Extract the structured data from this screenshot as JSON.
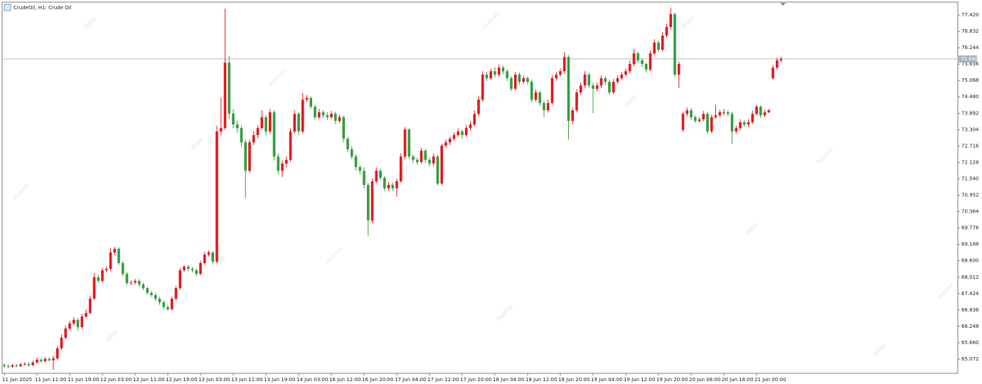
{
  "chart_data": {
    "type": "candlestick",
    "title": "CrudeOil, H1:  Crude Oil",
    "watermarks": [
      "百利好",
      "PLOTIO"
    ],
    "up_color": "#e3161c",
    "down_color": "#2f9e3c",
    "grid": false,
    "ylim": [
      64.563,
      77.879
    ],
    "yticks": [
      {
        "value": 77.42,
        "label": "77.420"
      },
      76.832,
      76.244,
      75.656,
      75.068,
      {
        "value": 74.48,
        "label": "74.480"
      },
      73.892,
      73.304,
      72.716,
      72.128,
      {
        "value": 71.54,
        "label": "71.540"
      },
      70.952,
      70.364,
      69.776,
      69.188,
      {
        "value": 68.6,
        "label": "68.600"
      },
      68.012,
      67.424,
      66.836,
      66.248,
      {
        "value": 65.66,
        "label": "65.660"
      },
      65.072
    ],
    "current_price": {
      "value": 75.84,
      "label": "75.840"
    },
    "categories": [
      "11 Jun 2025",
      null,
      null,
      null,
      null,
      null,
      null,
      null,
      "11 Jun 11:00",
      null,
      null,
      null,
      null,
      null,
      null,
      null,
      "11 Jun 19:00",
      null,
      null,
      null,
      null,
      null,
      null,
      null,
      "12 Jun 03:00",
      null,
      null,
      null,
      null,
      null,
      null,
      null,
      "12 Jun 11:00",
      null,
      null,
      null,
      null,
      null,
      null,
      null,
      "12 Jun 19:00",
      null,
      null,
      null,
      null,
      null,
      null,
      null,
      "13 Jun 03:00",
      null,
      null,
      null,
      null,
      null,
      null,
      null,
      "13 Jun 11:00",
      null,
      null,
      null,
      null,
      null,
      null,
      null,
      "13 Jun 19:00",
      null,
      null,
      null,
      null,
      null,
      null,
      null,
      "14 Jun 03:00",
      null,
      null,
      null,
      null,
      null,
      null,
      null,
      "16 Jun 12:00",
      null,
      null,
      null,
      null,
      null,
      null,
      null,
      "16 Jun 20:00",
      null,
      null,
      null,
      null,
      null,
      null,
      null,
      "17 Jun 04:00",
      null,
      null,
      null,
      null,
      null,
      null,
      null,
      "17 Jun 12:00",
      null,
      null,
      null,
      null,
      null,
      null,
      null,
      "17 Jun 20:00",
      null,
      null,
      null,
      null,
      null,
      null,
      null,
      "18 Jun 04:00",
      null,
      null,
      null,
      null,
      null,
      null,
      null,
      "18 Jun 12:00",
      null,
      null,
      null,
      null,
      null,
      null,
      null,
      "18 Jun 20:00",
      null,
      null,
      null,
      null,
      null,
      null,
      null,
      "19 Jun 04:00",
      null,
      null,
      null,
      null,
      null,
      null,
      null,
      "19 Jun 12:00",
      null,
      null,
      null,
      null,
      null,
      null,
      null,
      "19 Jun 20:00",
      null,
      null,
      null,
      null,
      null,
      null,
      null,
      "20 Jun 08:00",
      null,
      null,
      null,
      null,
      null,
      null,
      null,
      "20 Jun 16:00",
      null,
      null,
      null,
      null,
      null,
      null,
      null,
      "21 Jun 00:00",
      null,
      null,
      null,
      null,
      null,
      null
    ],
    "open": [
      64.86,
      64.82,
      64.8,
      64.85,
      64.82,
      64.88,
      64.9,
      64.86,
      64.95,
      65.05,
      65.0,
      65.08,
      65.03,
      65.1,
      65.46,
      65.84,
      66.17,
      66.35,
      66.48,
      66.22,
      66.6,
      66.73,
      67.24,
      68.01,
      67.88,
      68.26,
      68.31,
      68.9,
      69.03,
      68.52,
      68.13,
      67.8,
      67.82,
      67.88,
      67.75,
      67.62,
      67.45,
      67.37,
      67.24,
      67.11,
      66.94,
      66.86,
      67.24,
      67.62,
      68.26,
      68.39,
      68.31,
      68.26,
      68.13,
      68.52,
      68.82,
      68.9,
      68.57,
      73.24,
      73.36,
      75.71,
      73.88,
      73.49,
      73.36,
      72.85,
      71.83,
      72.85,
      73.11,
      73.36,
      73.75,
      73.24,
      73.93,
      72.34,
      71.83,
      72.09,
      72.22,
      73.24,
      73.87,
      73.24,
      74.38,
      74.44,
      74.13,
      73.75,
      73.93,
      73.82,
      73.75,
      73.87,
      73.62,
      73.75,
      72.98,
      72.6,
      72.34,
      71.96,
      71.83,
      71.32,
      70.05,
      71.45,
      71.83,
      71.58,
      71.2,
      71.32,
      71.2,
      71.45,
      72.34,
      73.31,
      72.34,
      72.22,
      72.14,
      72.55,
      72.22,
      72.09,
      72.34,
      71.37,
      72.73,
      72.85,
      72.98,
      73.11,
      73.24,
      73.11,
      73.36,
      73.49,
      73.87,
      74.38,
      75.28,
      75.15,
      75.4,
      75.28,
      75.53,
      75.4,
      75.15,
      74.77,
      75.28,
      75.02,
      75.15,
      75.02,
      74.38,
      74.64,
      74.26,
      74.0,
      74.26,
      75.15,
      75.28,
      75.4,
      75.91,
      73.62,
      74.0,
      74.64,
      74.89,
      75.28,
      74.89,
      74.77,
      74.89,
      75.15,
      75.02,
      74.64,
      75.02,
      75.15,
      75.28,
      75.4,
      75.66,
      76.04,
      75.79,
      75.66,
      75.46,
      76.04,
      76.43,
      76.17,
      76.68,
      76.99,
      77.45,
      75.28,
      73.3,
      73.87,
      74.0,
      73.75,
      73.62,
      73.67,
      73.87,
      73.24,
      73.75,
      73.82,
      73.93,
      73.93,
      73.87,
      73.24,
      73.36,
      73.57,
      73.49,
      73.57,
      73.87,
      74.13,
      73.82,
      73.93,
      75.15,
      75.53,
      75.79
    ],
    "high": [
      64.92,
      64.88,
      64.9,
      64.9,
      64.94,
      64.96,
      64.95,
      65.02,
      65.12,
      65.1,
      65.15,
      65.14,
      65.2,
      65.55,
      65.95,
      66.28,
      66.45,
      66.58,
      66.55,
      66.7,
      66.85,
      67.35,
      68.15,
      68.1,
      68.35,
      68.4,
      69.05,
      69.1,
      69.08,
      68.6,
      68.2,
      67.9,
      67.95,
      67.95,
      67.82,
      67.68,
      67.52,
      67.45,
      67.3,
      67.18,
      67.02,
      67.32,
      67.7,
      68.35,
      68.45,
      68.45,
      68.38,
      68.32,
      68.6,
      68.92,
      68.98,
      68.95,
      73.45,
      74.45,
      77.65,
      75.95,
      74.05,
      73.62,
      73.45,
      72.95,
      72.95,
      73.25,
      73.45,
      74.0,
      73.82,
      74.05,
      74.0,
      72.45,
      72.2,
      72.35,
      73.35,
      74.0,
      73.95,
      74.62,
      74.55,
      74.5,
      74.2,
      74.05,
      74.0,
      73.92,
      73.98,
      73.95,
      73.85,
      73.82,
      73.05,
      72.7,
      72.42,
      72.05,
      71.95,
      71.4,
      71.55,
      71.95,
      71.9,
      71.65,
      71.42,
      71.4,
      71.55,
      72.45,
      73.4,
      73.35,
      72.42,
      72.3,
      72.65,
      72.62,
      72.3,
      72.45,
      72.4,
      72.8,
      72.95,
      73.05,
      73.2,
      73.35,
      73.3,
      73.48,
      73.6,
      74.0,
      74.5,
      75.4,
      75.38,
      75.5,
      75.55,
      75.65,
      75.6,
      75.48,
      75.22,
      75.38,
      75.35,
      75.25,
      75.22,
      75.1,
      74.75,
      74.7,
      74.35,
      74.38,
      75.25,
      75.38,
      75.5,
      76.1,
      75.98,
      74.1,
      74.75,
      75.0,
      75.4,
      75.35,
      74.98,
      75.0,
      75.25,
      75.22,
      75.1,
      75.12,
      75.25,
      75.38,
      75.5,
      75.78,
      76.2,
      76.1,
      75.88,
      75.72,
      76.15,
      76.55,
      76.5,
      76.8,
      77.1,
      77.68,
      77.5,
      75.75,
      73.95,
      74.1,
      74.08,
      73.82,
      73.75,
      73.98,
      73.95,
      73.85,
      74.2,
      74.02,
      74.05,
      74.0,
      73.95,
      73.45,
      73.68,
      73.65,
      73.68,
      73.98,
      74.2,
      74.18,
      74.02,
      74.05,
      75.62,
      75.88,
      75.92
    ],
    "low": [
      64.76,
      64.74,
      64.76,
      64.78,
      64.78,
      64.84,
      64.8,
      64.82,
      64.92,
      64.95,
      64.96,
      64.98,
      64.69,
      65.05,
      65.4,
      65.78,
      66.1,
      66.28,
      66.1,
      66.15,
      66.55,
      66.68,
      67.2,
      67.8,
      67.82,
      68.18,
      68.25,
      68.8,
      68.45,
      68.05,
      67.72,
      67.72,
      67.75,
      67.68,
      67.55,
      67.38,
      67.3,
      67.15,
      67.02,
      66.85,
      66.8,
      66.82,
      67.18,
      67.55,
      68.2,
      68.22,
      68.18,
      68.05,
      68.08,
      68.45,
      68.75,
      68.5,
      68.5,
      73.1,
      73.3,
      73.7,
      73.35,
      73.2,
      72.7,
      70.85,
      71.75,
      72.75,
      73.0,
      73.3,
      73.1,
      73.15,
      72.2,
      71.7,
      71.6,
      71.95,
      72.15,
      73.15,
      73.1,
      73.15,
      74.3,
      74.05,
      73.65,
      73.68,
      73.72,
      73.65,
      73.68,
      73.5,
      73.55,
      72.85,
      72.5,
      72.25,
      71.85,
      71.7,
      71.2,
      69.5,
      69.95,
      71.38,
      71.48,
      71.1,
      71.12,
      71.1,
      70.9,
      71.4,
      72.25,
      72.25,
      72.1,
      72.05,
      72.08,
      72.12,
      71.98,
      72.0,
      71.3,
      71.3,
      72.65,
      72.75,
      72.9,
      73.05,
      72.98,
      73.05,
      73.28,
      73.42,
      73.8,
      74.3,
      75.05,
      75.08,
      75.18,
      75.2,
      75.3,
      75.05,
      74.68,
      74.7,
      74.92,
      74.95,
      74.92,
      74.28,
      74.3,
      74.15,
      73.75,
      73.92,
      74.2,
      75.05,
      75.2,
      75.3,
      72.95,
      73.5,
      73.92,
      74.55,
      74.8,
      74.8,
      73.9,
      74.68,
      74.8,
      74.9,
      74.55,
      74.58,
      74.95,
      75.08,
      75.2,
      75.32,
      75.58,
      75.7,
      75.55,
      75.35,
      75.4,
      75.98,
      76.08,
      76.1,
      76.6,
      76.9,
      75.2,
      74.8,
      73.22,
      73.78,
      73.65,
      73.55,
      73.55,
      73.6,
      73.15,
      73.18,
      73.7,
      73.75,
      73.82,
      73.78,
      72.8,
      73.15,
      73.28,
      73.4,
      73.4,
      73.5,
      73.8,
      73.72,
      73.75,
      73.9,
      75.08,
      75.45,
      75.72
    ],
    "close": [
      64.82,
      64.8,
      64.85,
      64.82,
      64.88,
      64.9,
      64.86,
      64.95,
      65.05,
      65.0,
      65.08,
      65.03,
      65.1,
      65.46,
      65.84,
      66.17,
      66.35,
      66.48,
      66.22,
      66.6,
      66.73,
      67.24,
      68.01,
      67.88,
      68.26,
      68.31,
      68.9,
      69.03,
      68.52,
      68.13,
      67.8,
      67.82,
      67.88,
      67.75,
      67.62,
      67.45,
      67.37,
      67.24,
      67.11,
      66.94,
      66.86,
      67.24,
      67.62,
      68.26,
      68.39,
      68.31,
      68.26,
      68.13,
      68.52,
      68.82,
      68.9,
      68.57,
      73.24,
      73.36,
      75.71,
      73.88,
      73.49,
      73.36,
      72.85,
      71.83,
      72.85,
      73.11,
      73.36,
      73.75,
      73.24,
      73.93,
      72.34,
      71.83,
      72.09,
      72.22,
      73.24,
      73.87,
      73.24,
      74.38,
      74.44,
      74.13,
      73.75,
      73.93,
      73.82,
      73.75,
      73.87,
      73.62,
      73.75,
      72.98,
      72.6,
      72.34,
      71.96,
      71.83,
      71.32,
      70.05,
      71.45,
      71.83,
      71.58,
      71.2,
      71.32,
      71.2,
      71.45,
      72.34,
      73.31,
      72.34,
      72.22,
      72.14,
      72.55,
      72.22,
      72.09,
      72.34,
      71.37,
      72.73,
      72.85,
      72.98,
      73.11,
      73.24,
      73.11,
      73.36,
      73.49,
      73.87,
      74.38,
      75.28,
      75.15,
      75.4,
      75.28,
      75.53,
      75.4,
      75.15,
      74.77,
      75.28,
      75.02,
      75.15,
      75.02,
      74.38,
      74.64,
      74.26,
      74.0,
      74.26,
      75.15,
      75.28,
      75.4,
      75.91,
      73.62,
      74.0,
      74.64,
      74.89,
      75.28,
      74.89,
      74.77,
      74.89,
      75.15,
      75.02,
      74.64,
      75.02,
      75.15,
      75.28,
      75.4,
      75.66,
      76.04,
      75.79,
      75.66,
      75.46,
      76.04,
      76.43,
      76.17,
      76.68,
      76.99,
      77.45,
      75.28,
      75.66,
      73.87,
      74.0,
      73.75,
      73.62,
      73.67,
      73.87,
      73.24,
      73.75,
      73.82,
      73.93,
      73.93,
      73.87,
      73.24,
      73.36,
      73.57,
      73.49,
      73.57,
      73.87,
      74.13,
      73.82,
      73.93,
      74.0,
      75.53,
      75.79,
      75.84
    ]
  }
}
